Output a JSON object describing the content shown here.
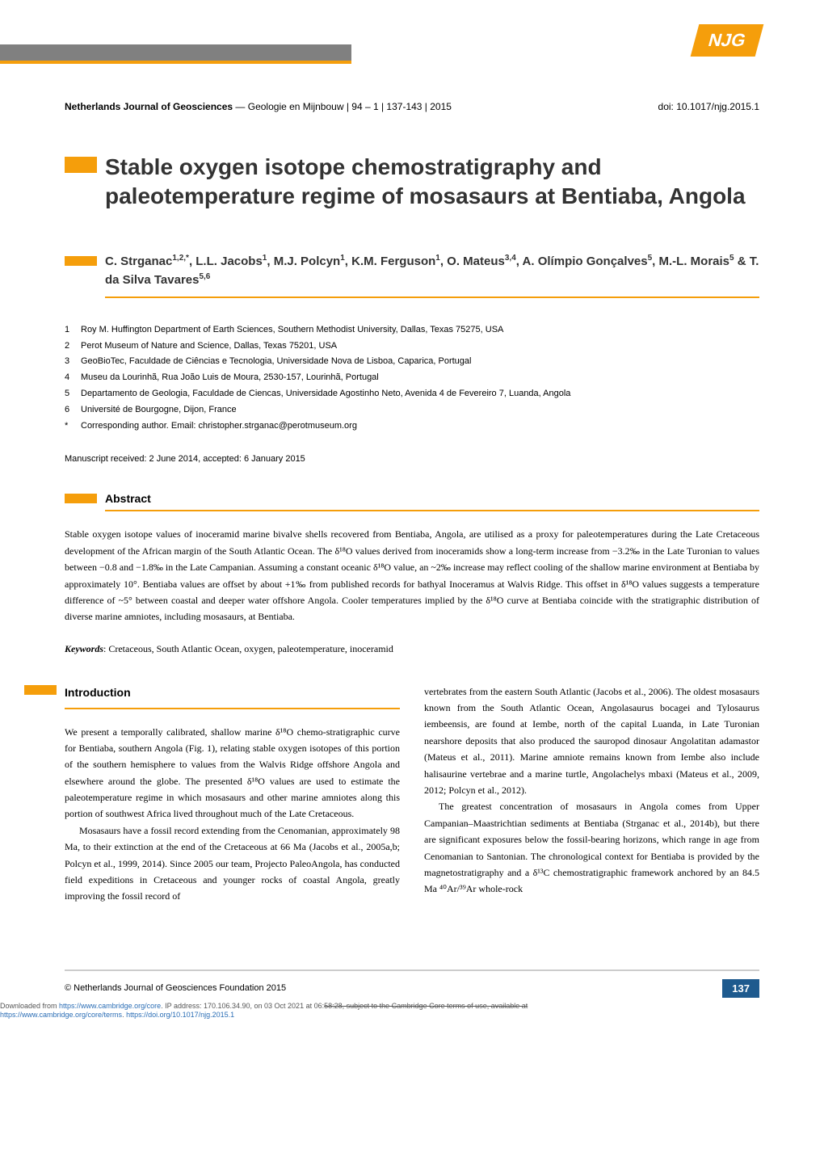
{
  "logo": {
    "text": "NJG"
  },
  "journal": {
    "name": "Netherlands Journal of Geosciences",
    "meta": " — Geologie en Mijnbouw  | 94 – 1 | 137-143 | 2015",
    "doi": "doi: 10.1017/njg.2015.1"
  },
  "title": "Stable oxygen isotope chemostratigraphy and paleotemperature regime of mosasaurs at Bentiaba, Angola",
  "authors_html": "C. Strganac<sup>1,2,*</sup>, L.L. Jacobs<sup>1</sup>, M.J. Polcyn<sup>1</sup>, K.M. Ferguson<sup>1</sup>, O. Mateus<sup>3,4</sup>, A. Olímpio Gonçalves<sup>5</sup>, M.-L. Morais<sup>5</sup> & T. da Silva Tavares<sup>5,6</sup>",
  "affiliations": [
    {
      "num": "1",
      "text": "Roy M. Huffington Department of Earth Sciences, Southern Methodist University, Dallas, Texas 75275, USA"
    },
    {
      "num": "2",
      "text": "Perot Museum of Nature and Science, Dallas, Texas 75201, USA"
    },
    {
      "num": "3",
      "text": "GeoBioTec, Faculdade de Ciências e Tecnologia, Universidade Nova de Lisboa, Caparica, Portugal"
    },
    {
      "num": "4",
      "text": "Museu da Lourinhã, Rua João Luis de Moura, 2530-157, Lourinhã, Portugal"
    },
    {
      "num": "5",
      "text": "Departamento de Geologia, Faculdade de Ciencas, Universidade Agostinho Neto, Avenida 4 de Fevereiro 7, Luanda, Angola"
    },
    {
      "num": "6",
      "text": "Université de Bourgogne, Dijon, France"
    },
    {
      "num": "*",
      "text": "Corresponding author. Email: christopher.strganac@perotmuseum.org"
    }
  ],
  "manuscript": "Manuscript received: 2 June 2014, accepted: 6 January 2015",
  "abstract": {
    "heading": "Abstract",
    "text": "Stable oxygen isotope values of inoceramid marine bivalve shells recovered from Bentiaba, Angola, are utilised as a proxy for paleotemperatures during the Late Cretaceous development of the African margin of the South Atlantic Ocean. The δ¹⁸O values derived from inoceramids show a long-term increase from −3.2‰ in the Late Turonian to values between −0.8 and −1.8‰ in the Late Campanian. Assuming a constant oceanic δ¹⁸O value, an ~2‰ increase may reflect cooling of the shallow marine environment at Bentiaba by approximately 10°. Bentiaba values are offset by about +1‰ from published records for bathyal Inoceramus at Walvis Ridge. This offset in δ¹⁸O values suggests a temperature difference of ~5° between coastal and deeper water offshore Angola. Cooler temperatures implied by the δ¹⁸O curve at Bentiaba coincide with the stratigraphic distribution of diverse marine amniotes, including mosasaurs, at Bentiaba."
  },
  "keywords": {
    "label": "Keywords",
    "text": ": Cretaceous, South Atlantic Ocean, oxygen, paleotemperature, inoceramid"
  },
  "intro": {
    "heading": "Introduction",
    "col1_p1": "We present a temporally calibrated, shallow marine δ¹⁸O chemo-stratigraphic curve for Bentiaba, southern Angola (Fig. 1), relating stable oxygen isotopes of this portion of the southern hemisphere to values from the Walvis Ridge offshore Angola and elsewhere around the globe. The presented δ¹⁸O values are used to estimate the paleotemperature regime in which mosasaurs and other marine amniotes along this portion of southwest Africa lived throughout much of the Late Cretaceous.",
    "col1_p2": "Mosasaurs have a fossil record extending from the Cenomanian, approximately 98 Ma, to their extinction at the end of the Cretaceous at 66 Ma (Jacobs et al., 2005a,b; Polcyn et al., 1999, 2014). Since 2005 our team, Projecto PaleoAngola, has conducted field expeditions in Cretaceous and younger rocks of coastal Angola, greatly improving the fossil record of",
    "col2_p1": "vertebrates from the eastern South Atlantic (Jacobs et al., 2006). The oldest mosasaurs known from the South Atlantic Ocean, Angolasaurus bocagei and Tylosaurus iembeensis, are found at Iembe, north of the capital Luanda, in Late Turonian nearshore deposits that also produced the sauropod dinosaur Angolatitan adamastor (Mateus et al., 2011). Marine amniote remains known from Iembe also include halisaurine vertebrae and a marine turtle, Angolachelys mbaxi (Mateus et al., 2009, 2012; Polcyn et al., 2012).",
    "col2_p2": "The greatest concentration of mosasaurs in Angola comes from Upper Campanian–Maastrichtian sediments at Bentiaba (Strganac et al., 2014b), but there are significant exposures below the fossil-bearing horizons, which range in age from Cenomanian to Santonian. The chronological context for Bentiaba is provided by the magnetostratigraphy and a δ¹³C chemostratigraphic framework anchored by an 84.5 Ma ⁴⁰Ar/³⁹Ar whole-rock"
  },
  "footer": {
    "copyright": "© Netherlands Journal of Geosciences Foundation 2015",
    "page": "137",
    "download_prefix": "Downloaded from ",
    "download_link1": "https://www.cambridge.org/core",
    "download_mid": ". IP address: 170.106.34.90, on 03 Oct 2021 at 06:",
    "download_strike": "58:28, subject to the Cambridge Core terms of use, available at",
    "download_line2a": "https://www.cambridge.org/core/terms",
    "download_line2b": ". ",
    "download_line2c": "https://doi.org/10.1017/njg.2015.1"
  },
  "colors": {
    "accent": "#f59e0b",
    "page_badge": "#1e5a8e",
    "header_gray": "#808080"
  }
}
